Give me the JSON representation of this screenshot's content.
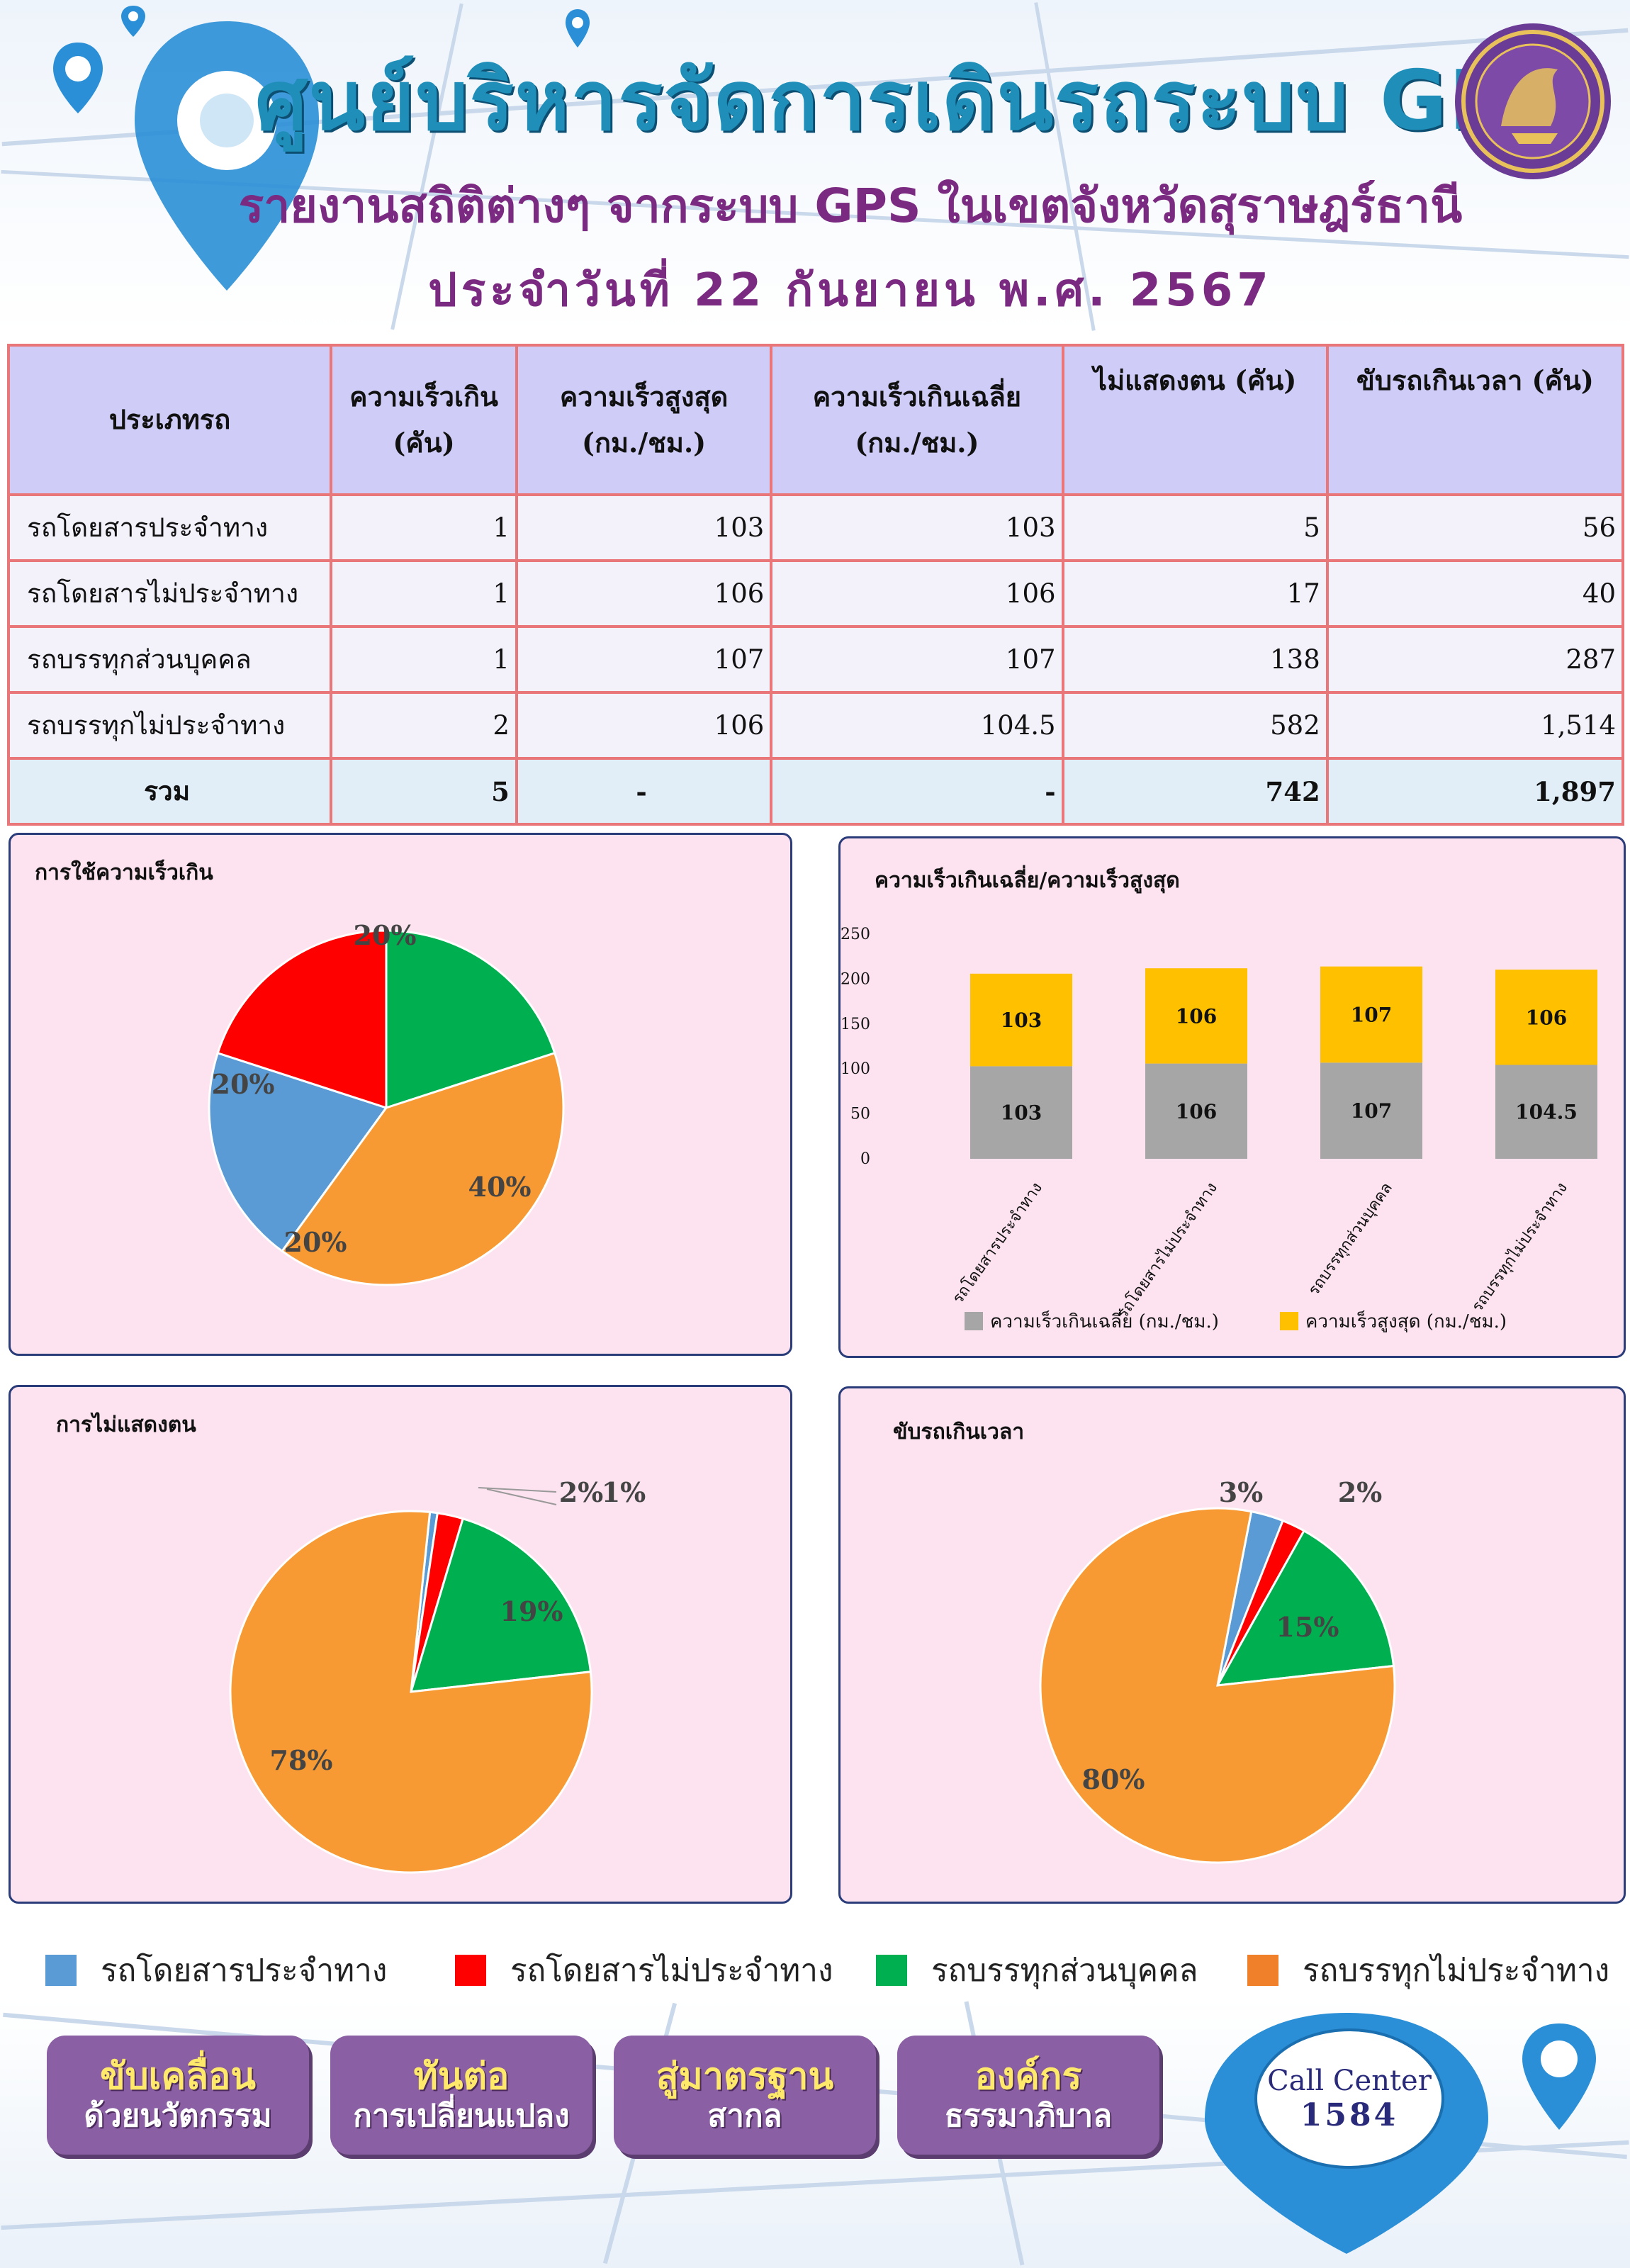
{
  "header": {
    "title": "ศูนย์บริหารจัดการเดินรถระบบ GPS",
    "subtitle": "รายงานสถิติต่างๆ จากระบบ GPS ในเขตจังหวัดสุราษฎร์ธานี",
    "dateline": "ประจำวันที่ 22 กันยายน พ.ศ. 2567"
  },
  "table": {
    "headers": {
      "category": "ประเภทรถ",
      "overspeed_line1": "ความเร็วเกิน",
      "overspeed_line2": "(คัน)",
      "maxspeed_line1": "ความเร็วสูงสุด",
      "maxspeed_line2": "(กม./ชม.)",
      "avgspeed_line1": "ความเร็วเกินเฉลี่ย",
      "avgspeed_line2": "(กม./ชม.)",
      "noident": "ไม่แสดงตน (คัน)",
      "overtime": "ขับรถเกินเวลา (คัน)"
    },
    "rows": [
      {
        "category": "รถโดยสารประจำทาง",
        "overspeed": "1",
        "maxspeed": "103",
        "avgspeed": "103",
        "noident": "5",
        "overtime": "56"
      },
      {
        "category": "รถโดยสารไม่ประจำทาง",
        "overspeed": "1",
        "maxspeed": "106",
        "avgspeed": "106",
        "noident": "17",
        "overtime": "40"
      },
      {
        "category": "รถบรรทุกส่วนบุคคล",
        "overspeed": "1",
        "maxspeed": "107",
        "avgspeed": "107",
        "noident": "138",
        "overtime": "287"
      },
      {
        "category": "รถบรรทุกไม่ประจำทาง",
        "overspeed": "2",
        "maxspeed": "106",
        "avgspeed": "104.5",
        "noident": "582",
        "overtime": "1,514"
      }
    ],
    "total": {
      "category": "รวม",
      "overspeed": "5",
      "maxspeed": "-",
      "avgspeed": "-",
      "noident": "742",
      "overtime": "1,897"
    }
  },
  "colors": {
    "bus_route": "#5b9bd5",
    "bus_nonroute": "#ff0000",
    "truck_private": "#00b050",
    "truck_nonroute": "#f79a33",
    "bar_avg": "#a6a6a6",
    "bar_max": "#ffc000"
  },
  "chart_data": [
    {
      "type": "pie",
      "title": "การใช้ความเร็วเกิน",
      "categories": [
        "รถโดยสารประจำทาง",
        "รถโดยสารไม่ประจำทาง",
        "รถบรรทุกส่วนบุคคล",
        "รถบรรทุกไม่ประจำทาง"
      ],
      "values": [
        1,
        1,
        1,
        2
      ],
      "labels": [
        "20%",
        "20%",
        "20%",
        "40%"
      ]
    },
    {
      "type": "bar",
      "stacked": true,
      "title": "ความเร็วเกินเฉลี่ย/ความเร็วสูงสุด",
      "categories": [
        "รถโดยสารประจำทาง",
        "รถโดยสารไม่ประจำทาง",
        "รถบรรทุกส่วนบุคคล",
        "รถบรรทุกไม่ประจำทาง"
      ],
      "series": [
        {
          "name": "ความเร็วเกินเฉลี่ย (กม./ชม.)",
          "values": [
            103,
            106,
            107,
            104.5
          ]
        },
        {
          "name": "ความเร็วสูงสุด (กม./ชม.)",
          "values": [
            103,
            106,
            107,
            106
          ]
        }
      ],
      "yticks": [
        "0",
        "50",
        "100",
        "150",
        "200",
        "250"
      ],
      "ylim": [
        0,
        250
      ],
      "legend": "bottom"
    },
    {
      "type": "pie",
      "title": "การไม่แสดงตน",
      "categories": [
        "รถโดยสารประจำทาง",
        "รถโดยสารไม่ประจำทาง",
        "รถบรรทุกส่วนบุคคล",
        "รถบรรทุกไม่ประจำทาง"
      ],
      "values": [
        5,
        17,
        138,
        582
      ],
      "labels": [
        "1%",
        "2%",
        "19%",
        "78%"
      ]
    },
    {
      "type": "pie",
      "title": "ขับรถเกินเวลา",
      "categories": [
        "รถโดยสารประจำทาง",
        "รถโดยสารไม่ประจำทาง",
        "รถบรรทุกส่วนบุคคล",
        "รถบรรทุกไม่ประจำทาง"
      ],
      "values": [
        56,
        40,
        287,
        1514
      ],
      "labels": [
        "3%",
        "2%",
        "15%",
        "80%"
      ]
    }
  ],
  "legend": [
    {
      "label": "รถโดยสารประจำทาง",
      "color": "#5b9bd5"
    },
    {
      "label": "รถโดยสารไม่ประจำทาง",
      "color": "#ff0000"
    },
    {
      "label": "รถบรรทุกส่วนบุคคล",
      "color": "#00b050"
    },
    {
      "label": "รถบรรทุกไม่ประจำทาง",
      "color": "#f0802a"
    }
  ],
  "buttons": [
    {
      "line1": "ขับเคลื่อน",
      "line2": "ด้วยนวัตกรรม"
    },
    {
      "line1": "ทันต่อ",
      "line2": "การเปลี่ยนแปลง"
    },
    {
      "line1": "สู่มาตรฐาน",
      "line2": "สากล"
    },
    {
      "line1": "องค์กร",
      "line2": "ธรรมาภิบาล"
    }
  ],
  "call_center": {
    "label": "Call Center",
    "number": "1584"
  }
}
